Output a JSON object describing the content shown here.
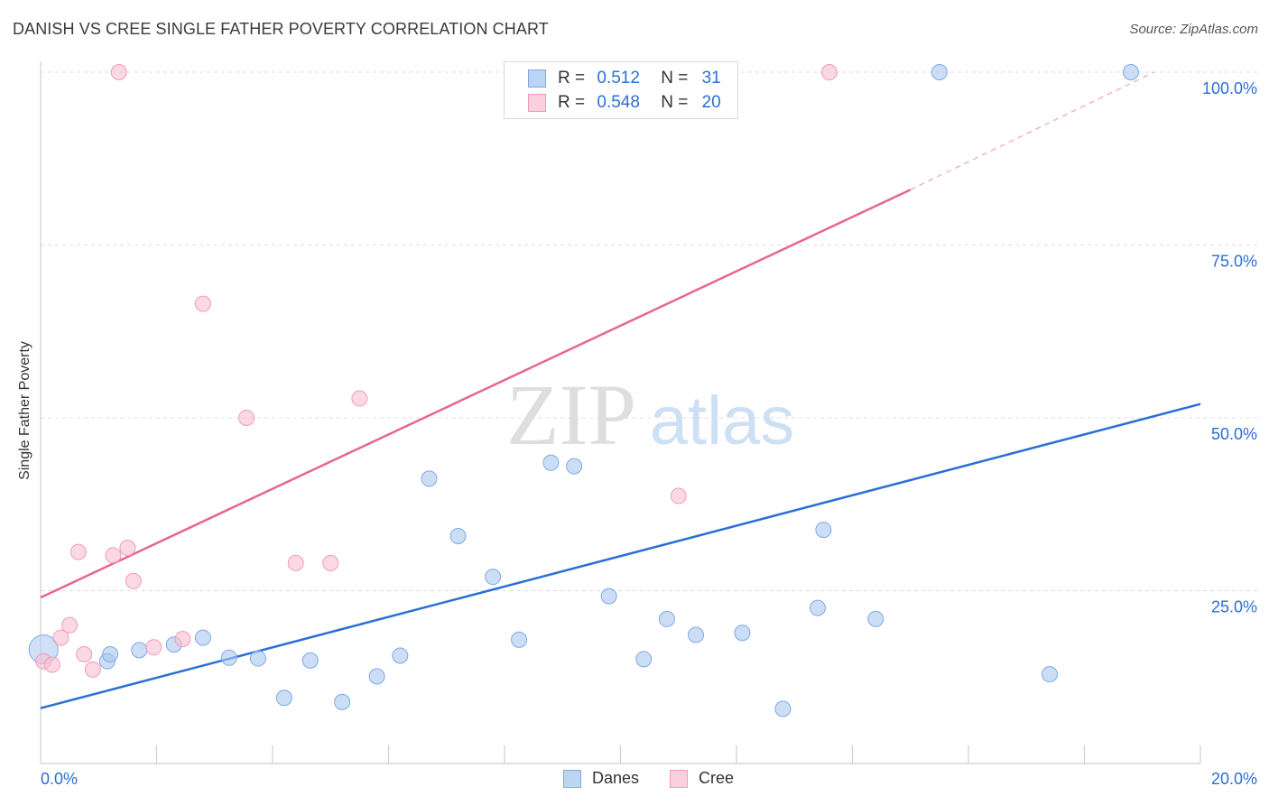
{
  "chart_data": {
    "type": "scatter",
    "title": "DANISH VS CREE SINGLE FATHER POVERTY CORRELATION CHART",
    "source": "Source: ZipAtlas.com",
    "watermark": {
      "zip": "ZIP",
      "atlas": "atlas"
    },
    "xlabel": "",
    "ylabel": "Single Father Poverty",
    "xlim": [
      0,
      20
    ],
    "ylim": [
      0,
      100
    ],
    "x_tick_labels": {
      "min": "0.0%",
      "max": "20.0%"
    },
    "y_ticks": [
      25,
      50,
      75,
      100
    ],
    "y_tick_labels": [
      "25.0%",
      "50.0%",
      "75.0%",
      "100.0%"
    ],
    "grid": true,
    "legend_position": "top-center",
    "series": [
      {
        "name": "Danes",
        "color": "#a9c8f0",
        "line_color": "#2b6fd6",
        "R_label": "R =",
        "R": "0.512",
        "N_label": "N =",
        "N": "31",
        "trend": {
          "x0": 0,
          "y0": 8.0,
          "x1": 20,
          "y1": 52.0
        },
        "points": [
          [
            0.05,
            16.5
          ],
          [
            1.15,
            14.8
          ],
          [
            1.2,
            15.8
          ],
          [
            1.7,
            16.4
          ],
          [
            2.3,
            17.2
          ],
          [
            2.8,
            18.2
          ],
          [
            3.25,
            15.3
          ],
          [
            3.75,
            15.2
          ],
          [
            4.2,
            9.5
          ],
          [
            4.65,
            14.9
          ],
          [
            5.2,
            8.9
          ],
          [
            5.8,
            12.6
          ],
          [
            6.2,
            15.6
          ],
          [
            6.7,
            41.2
          ],
          [
            7.2,
            32.9
          ],
          [
            7.8,
            27.0
          ],
          [
            8.25,
            17.9
          ],
          [
            8.8,
            43.5
          ],
          [
            9.2,
            43.0
          ],
          [
            9.8,
            24.2
          ],
          [
            10.4,
            15.1
          ],
          [
            10.8,
            20.9
          ],
          [
            11.3,
            18.6
          ],
          [
            12.1,
            18.9
          ],
          [
            12.8,
            7.9
          ],
          [
            13.4,
            22.5
          ],
          [
            13.5,
            33.8
          ],
          [
            14.4,
            20.9
          ],
          [
            15.5,
            100
          ],
          [
            17.4,
            12.9
          ],
          [
            18.8,
            100
          ]
        ]
      },
      {
        "name": "Cree",
        "color": "#f9c0d2",
        "line_color": "#e8668f",
        "R_label": "R =",
        "R": "0.548",
        "N_label": "N =",
        "N": "20",
        "trend": {
          "x0": 0,
          "y0": 24.0,
          "x1": 15.0,
          "y1": 83.0,
          "dash_x1": 19.2,
          "dash_y1": 100.0
        },
        "points": [
          [
            0.05,
            14.8
          ],
          [
            0.2,
            14.3
          ],
          [
            0.35,
            18.2
          ],
          [
            0.5,
            20.0
          ],
          [
            0.65,
            30.6
          ],
          [
            0.75,
            15.8
          ],
          [
            0.9,
            13.6
          ],
          [
            1.25,
            30.1
          ],
          [
            1.35,
            100
          ],
          [
            1.5,
            31.2
          ],
          [
            1.6,
            26.4
          ],
          [
            1.95,
            16.8
          ],
          [
            2.45,
            18.0
          ],
          [
            2.8,
            66.5
          ],
          [
            3.55,
            50.0
          ],
          [
            4.4,
            29.0
          ],
          [
            5.0,
            29.0
          ],
          [
            5.5,
            52.8
          ],
          [
            11.0,
            38.7
          ],
          [
            13.6,
            100
          ]
        ]
      }
    ]
  }
}
